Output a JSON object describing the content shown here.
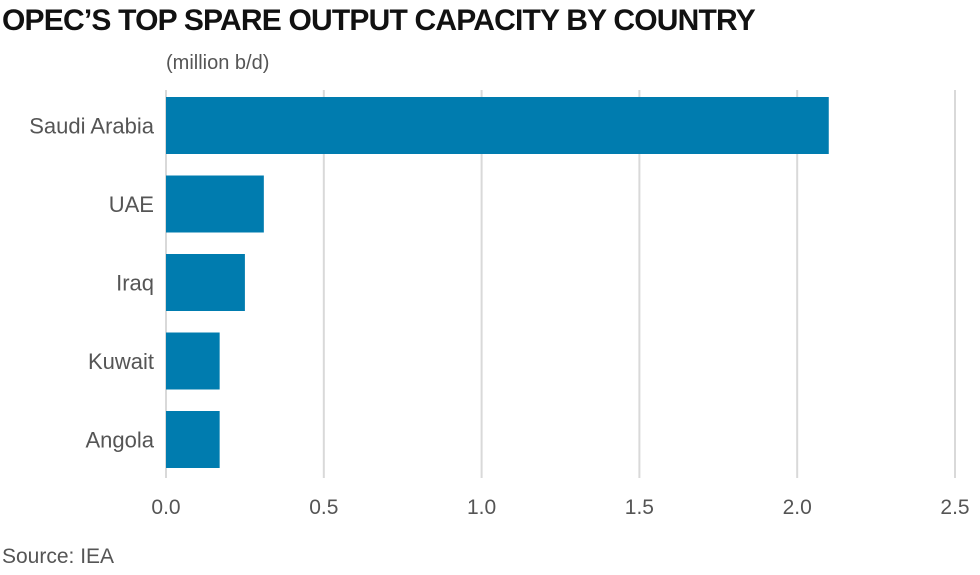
{
  "title": "OPEC’S TOP SPARE OUTPUT CAPACITY BY COUNTRY",
  "unit_label": "(million b/d)",
  "source": "Source: IEA",
  "colors": {
    "bar": "#007caf",
    "grid": "#d9d9d9",
    "text": "#555555"
  },
  "chart_data": {
    "type": "bar",
    "orientation": "horizontal",
    "title": "OPEC’S TOP SPARE OUTPUT CAPACITY BY COUNTRY",
    "xlabel": "",
    "ylabel": "",
    "categories": [
      "Saudi Arabia",
      "UAE",
      "Iraq",
      "Kuwait",
      "Angola"
    ],
    "values": [
      2.1,
      0.31,
      0.25,
      0.17,
      0.17
    ],
    "xlim": [
      0,
      2.5
    ],
    "xticks": [
      "0.0",
      "0.5",
      "1.0",
      "1.5",
      "2.0",
      "2.5"
    ],
    "grid": true,
    "legend": "none"
  }
}
